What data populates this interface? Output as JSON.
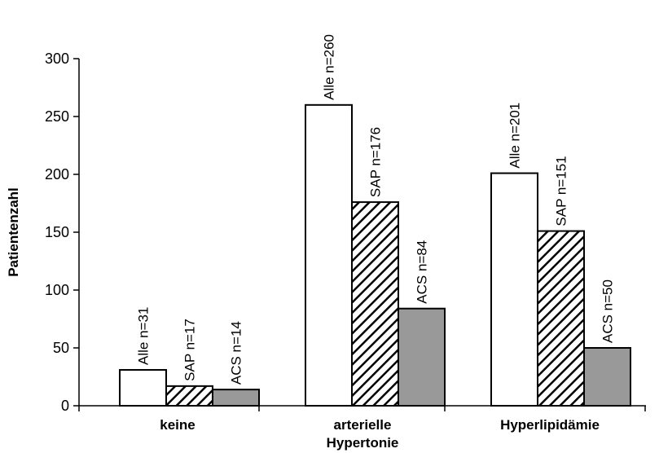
{
  "chart_data": {
    "type": "bar",
    "title": "",
    "xlabel": "",
    "ylabel": "Patientenzahl",
    "ylim": [
      0,
      300
    ],
    "yticks": [
      "0",
      "50",
      "100",
      "150",
      "200",
      "250",
      "300"
    ],
    "categories": [
      [
        "keine"
      ],
      [
        "arterielle",
        "Hypertonie"
      ],
      [
        "Hyperlipidämie"
      ]
    ],
    "series": [
      {
        "fill": "#ffffff",
        "pattern": "none",
        "values": [
          31,
          260,
          201
        ],
        "labels": [
          "Alle n=31",
          "Alle n=260",
          "Alle n=201"
        ]
      },
      {
        "fill": "#ffffff",
        "pattern": "diagonal-hatch",
        "values": [
          17,
          176,
          151
        ],
        "labels": [
          "SAP n=17",
          "SAP n=176",
          "SAP n=151"
        ]
      },
      {
        "fill": "#999999",
        "pattern": "none",
        "values": [
          14,
          84,
          50
        ],
        "labels": [
          "ACS n=14",
          "ACS n=84",
          "ACS n=50"
        ]
      }
    ],
    "grid": false,
    "legend": "none"
  }
}
